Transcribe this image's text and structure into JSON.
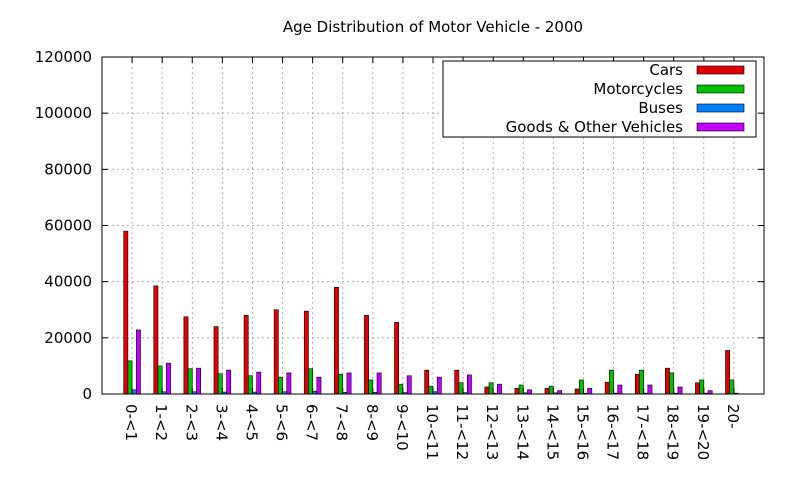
{
  "chart_data": {
    "type": "bar",
    "title": "Age Distribution of Motor Vehicle - 2000",
    "xlabel": "",
    "ylabel": "",
    "ylim": [
      0,
      120000
    ],
    "yticks": [
      0,
      20000,
      40000,
      60000,
      80000,
      100000,
      120000
    ],
    "grid": true,
    "legend_position": "top-right",
    "categories": [
      "0-<1",
      "1-<2",
      "2-<3",
      "3-<4",
      "4-<5",
      "5-<6",
      "6-<7",
      "7-<8",
      "8-<9",
      "9-<10",
      "10-<11",
      "11-<12",
      "12-<13",
      "13-<14",
      "14-<15",
      "15-<16",
      "16-<17",
      "17-<18",
      "18-<19",
      "19-<20",
      "20-"
    ],
    "series": [
      {
        "name": "Cars",
        "color": "#e00000",
        "values": [
          58000,
          38500,
          27500,
          24000,
          28000,
          30000,
          29500,
          38000,
          28000,
          25500,
          8500,
          8500,
          2500,
          2000,
          2000,
          1800,
          4200,
          7000,
          9200,
          4000,
          15500
        ]
      },
      {
        "name": "Motorcycles",
        "color": "#00c000",
        "values": [
          11800,
          10000,
          9000,
          7200,
          6500,
          6000,
          9000,
          7000,
          5000,
          3500,
          2800,
          4000,
          4000,
          3200,
          2800,
          5000,
          8500,
          8500,
          7500,
          5000,
          5000
        ]
      },
      {
        "name": "Buses",
        "color": "#0080ff",
        "values": [
          1500,
          800,
          800,
          700,
          700,
          800,
          1000,
          600,
          600,
          500,
          800,
          500,
          300,
          400,
          400,
          300,
          300,
          300,
          300,
          300,
          300
        ]
      },
      {
        "name": "Goods & Other Vehicles",
        "color": "#c000ff",
        "values": [
          22800,
          11000,
          9200,
          8500,
          7800,
          7500,
          6000,
          7500,
          7500,
          6500,
          6000,
          6800,
          3500,
          1500,
          1200,
          2000,
          3200,
          3200,
          2500,
          1200,
          0
        ]
      }
    ]
  }
}
